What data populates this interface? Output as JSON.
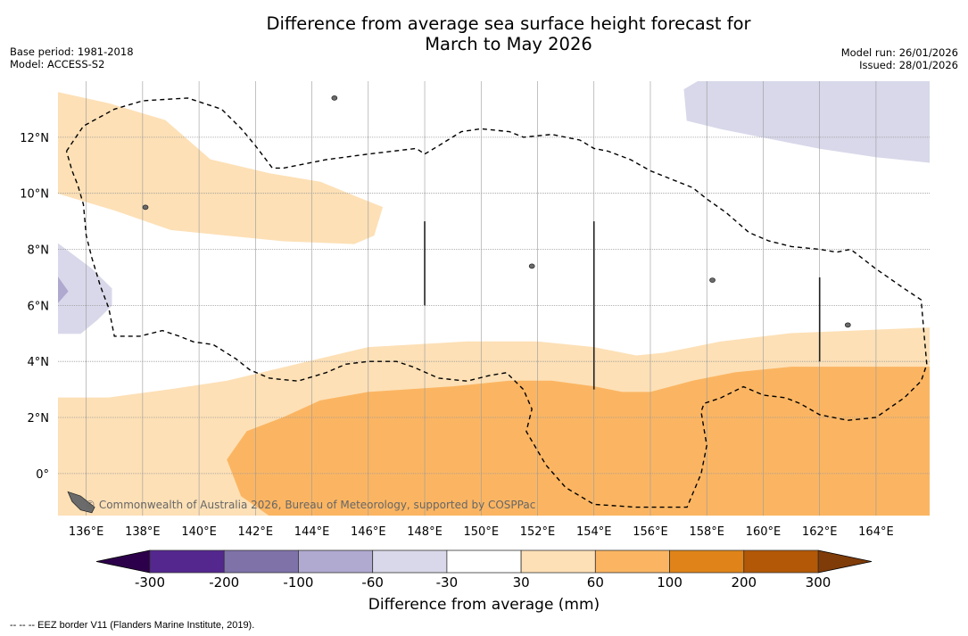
{
  "header": {
    "title_line1": "Difference from average sea surface height forecast for",
    "title_line2": "March to May 2026",
    "base_period": "Base period: 1981-2018",
    "model": "Model: ACCESS-S2",
    "model_run": "Model run: 26/01/2026",
    "issued": "Issued: 28/01/2026"
  },
  "map": {
    "lon_range": [
      135.0,
      165.9
    ],
    "lat_range": [
      -1.5,
      14.0
    ],
    "lon_ticks": [
      136,
      138,
      140,
      142,
      144,
      146,
      148,
      150,
      152,
      154,
      156,
      158,
      160,
      162,
      164
    ],
    "lon_tick_labels": [
      "136°E",
      "138°E",
      "140°E",
      "142°E",
      "144°E",
      "146°E",
      "148°E",
      "150°E",
      "152°E",
      "154°E",
      "156°E",
      "158°E",
      "160°E",
      "162°E",
      "164°E"
    ],
    "lat_ticks": [
      0,
      2,
      4,
      6,
      8,
      10,
      12
    ],
    "lat_tick_labels": [
      "0°",
      "2°N",
      "4°N",
      "6°N",
      "8°N",
      "10°N",
      "12°N"
    ],
    "credit": "© Commonwealth of Australia 2026, Bureau of Meteorology, supported by COSPPac",
    "regions": [
      {
        "name": "north-band-30-60",
        "class": "30 to 60",
        "color": "#fde0b6",
        "points": [
          [
            135.0,
            13.6
          ],
          [
            136.8,
            13.2
          ],
          [
            138.8,
            12.6
          ],
          [
            140.4,
            11.2
          ],
          [
            142.5,
            10.7
          ],
          [
            144.3,
            10.4
          ],
          [
            145.5,
            9.9
          ],
          [
            146.5,
            9.5
          ],
          [
            146.2,
            8.5
          ],
          [
            145.5,
            8.2
          ],
          [
            143.0,
            8.3
          ],
          [
            139.0,
            8.7
          ],
          [
            137.0,
            9.4
          ],
          [
            135.0,
            10.0
          ]
        ]
      },
      {
        "name": "southern-band-30-60",
        "class": "30 to 60",
        "color": "#fde0b6",
        "points": [
          [
            135.0,
            2.7
          ],
          [
            136.8,
            2.7
          ],
          [
            139.0,
            3.0
          ],
          [
            141.0,
            3.3
          ],
          [
            143.5,
            3.9
          ],
          [
            146.0,
            4.5
          ],
          [
            149.5,
            4.7
          ],
          [
            152.0,
            4.7
          ],
          [
            154.0,
            4.5
          ],
          [
            155.5,
            4.2
          ],
          [
            156.5,
            4.3
          ],
          [
            158.5,
            4.7
          ],
          [
            161.0,
            5.0
          ],
          [
            163.5,
            5.1
          ],
          [
            165.9,
            5.2
          ],
          [
            165.9,
            -1.5
          ],
          [
            135.0,
            -1.5
          ]
        ]
      },
      {
        "name": "equatorial-core-60-100",
        "class": "60 to 100",
        "color": "#fbb562",
        "points": [
          [
            141.0,
            0.5
          ],
          [
            141.7,
            1.5
          ],
          [
            143.0,
            2.0
          ],
          [
            144.3,
            2.6
          ],
          [
            146.0,
            2.9
          ],
          [
            149.0,
            3.1
          ],
          [
            151.0,
            3.3
          ],
          [
            152.5,
            3.3
          ],
          [
            154.0,
            3.1
          ],
          [
            155.0,
            2.9
          ],
          [
            156.0,
            2.9
          ],
          [
            157.5,
            3.3
          ],
          [
            159.0,
            3.6
          ],
          [
            161.0,
            3.8
          ],
          [
            165.9,
            3.8
          ],
          [
            165.9,
            -1.5
          ],
          [
            142.5,
            -1.5
          ],
          [
            141.5,
            -0.8
          ]
        ]
      },
      {
        "name": "northeast-band-neg30-neg60",
        "class": "-60 to -30",
        "color": "#d8d8ea",
        "points": [
          [
            157.2,
            13.7
          ],
          [
            157.7,
            14.0
          ],
          [
            165.9,
            14.0
          ],
          [
            165.9,
            11.1
          ],
          [
            164.0,
            11.3
          ],
          [
            162.0,
            11.6
          ],
          [
            160.0,
            12.0
          ],
          [
            158.5,
            12.3
          ],
          [
            157.3,
            12.6
          ]
        ]
      },
      {
        "name": "west-band-neg30-neg60",
        "class": "-60 to -30",
        "color": "#d8d8ea",
        "points": [
          [
            135.0,
            8.2
          ],
          [
            136.2,
            7.3
          ],
          [
            136.9,
            6.6
          ],
          [
            136.9,
            6.0
          ],
          [
            136.4,
            5.5
          ],
          [
            135.8,
            5.0
          ],
          [
            135.0,
            5.0
          ]
        ]
      },
      {
        "name": "west-core-neg60-neg100",
        "class": "-100 to -60",
        "color": "#afa9d0",
        "points": [
          [
            135.0,
            7.0
          ],
          [
            135.35,
            6.5
          ],
          [
            135.0,
            6.1
          ]
        ]
      }
    ],
    "eez_border": [
      [
        [
          135.3,
          11.5
        ],
        [
          135.9,
          12.4
        ],
        [
          137.0,
          13.0
        ],
        [
          138.0,
          13.3
        ],
        [
          139.6,
          13.4
        ],
        [
          140.8,
          13.0
        ],
        [
          141.5,
          12.3
        ],
        [
          142.0,
          11.7
        ],
        [
          142.6,
          10.9
        ],
        [
          143.0,
          10.9
        ],
        [
          144.5,
          11.2
        ],
        [
          146.0,
          11.4
        ],
        [
          147.7,
          11.6
        ],
        [
          148.0,
          11.4
        ],
        [
          148.5,
          11.7
        ],
        [
          149.3,
          12.2
        ],
        [
          150.0,
          12.3
        ],
        [
          151.0,
          12.2
        ],
        [
          151.5,
          12.0
        ],
        [
          152.5,
          12.1
        ],
        [
          153.5,
          11.9
        ],
        [
          154.0,
          11.6
        ],
        [
          154.5,
          11.5
        ],
        [
          155.3,
          11.2
        ],
        [
          156.0,
          10.8
        ],
        [
          157.0,
          10.4
        ],
        [
          157.5,
          10.2
        ],
        [
          158.0,
          9.8
        ],
        [
          158.7,
          9.3
        ],
        [
          159.5,
          8.6
        ],
        [
          160.2,
          8.3
        ],
        [
          161.0,
          8.1
        ],
        [
          162.0,
          8.0
        ],
        [
          162.6,
          7.9
        ],
        [
          163.1,
          8.0
        ],
        [
          164.0,
          7.3
        ],
        [
          165.0,
          6.6
        ],
        [
          165.6,
          6.2
        ],
        [
          165.7,
          5.0
        ],
        [
          165.8,
          3.9
        ],
        [
          165.6,
          3.3
        ],
        [
          165.0,
          2.7
        ],
        [
          164.0,
          2.0
        ],
        [
          163.0,
          1.9
        ],
        [
          162.0,
          2.1
        ],
        [
          161.3,
          2.5
        ],
        [
          160.8,
          2.7
        ],
        [
          160.0,
          2.8
        ],
        [
          159.3,
          3.1
        ],
        [
          158.5,
          2.7
        ],
        [
          157.9,
          2.5
        ],
        [
          157.8,
          2.2
        ],
        [
          158.0,
          1.0
        ],
        [
          157.8,
          0.0
        ],
        [
          157.3,
          -1.2
        ],
        [
          155.5,
          -1.2
        ],
        [
          154.0,
          -1.1
        ],
        [
          153.0,
          -0.5
        ],
        [
          152.3,
          0.3
        ],
        [
          151.6,
          1.5
        ],
        [
          151.8,
          2.3
        ],
        [
          151.5,
          3.0
        ],
        [
          150.9,
          3.6
        ],
        [
          150.3,
          3.5
        ],
        [
          149.5,
          3.3
        ],
        [
          148.5,
          3.4
        ],
        [
          147.6,
          3.8
        ],
        [
          147.0,
          4.0
        ],
        [
          146.0,
          4.0
        ],
        [
          145.2,
          3.9
        ],
        [
          144.5,
          3.6
        ],
        [
          143.5,
          3.3
        ],
        [
          142.5,
          3.4
        ],
        [
          141.8,
          3.7
        ],
        [
          141.3,
          4.1
        ],
        [
          140.5,
          4.6
        ],
        [
          139.8,
          4.7
        ],
        [
          139.3,
          4.9
        ],
        [
          138.7,
          5.1
        ],
        [
          137.9,
          4.9
        ],
        [
          137.0,
          4.9
        ],
        [
          136.8,
          5.9
        ],
        [
          136.5,
          6.7
        ],
        [
          136.2,
          7.7
        ],
        [
          136.0,
          8.5
        ],
        [
          135.9,
          9.6
        ],
        [
          135.7,
          10.3
        ],
        [
          135.5,
          10.8
        ],
        [
          135.3,
          11.5
        ]
      ]
    ],
    "boundary_lines": [
      {
        "lon": 148.0,
        "lat": [
          6.0,
          9.0
        ]
      },
      {
        "lon": 154.0,
        "lat": [
          3.0,
          9.0
        ]
      },
      {
        "lon": 162.0,
        "lat": [
          4.0,
          7.0
        ]
      }
    ],
    "islands": [
      {
        "name": "guam",
        "lon": 144.8,
        "lat": 13.4
      },
      {
        "name": "chuuk",
        "lon": 151.8,
        "lat": 7.4
      },
      {
        "name": "pohnpei",
        "lon": 158.2,
        "lat": 6.9
      },
      {
        "name": "kosrae",
        "lon": 163.0,
        "lat": 5.3
      },
      {
        "name": "yap",
        "lon": 138.1,
        "lat": 9.5
      }
    ]
  },
  "colorbar": {
    "title": "Difference from average (mm)",
    "tick_labels": [
      "-300",
      "-200",
      "-100",
      "-60",
      "-30",
      "30",
      "60",
      "100",
      "200",
      "300"
    ],
    "bins": [
      {
        "range": "-300 to -200",
        "color": "#54278f"
      },
      {
        "range": "-200 to -100",
        "color": "#7e72a9"
      },
      {
        "range": "-100 to -60",
        "color": "#b0a9d0"
      },
      {
        "range": "-60 to -30",
        "color": "#d8d8ea"
      },
      {
        "range": "-30 to 30",
        "color": "#ffffff"
      },
      {
        "range": "30 to 60",
        "color": "#fde0b6"
      },
      {
        "range": "60 to 100",
        "color": "#fbb562"
      },
      {
        "range": "100 to 200",
        "color": "#e08419"
      },
      {
        "range": "200 to 300",
        "color": "#b35806"
      }
    ],
    "under_color": "#2d004b",
    "over_color": "#7f3b08"
  },
  "footer": {
    "eez_note": "--  --  -- EEZ border V11 (Flanders Marine Institute, 2019)."
  }
}
